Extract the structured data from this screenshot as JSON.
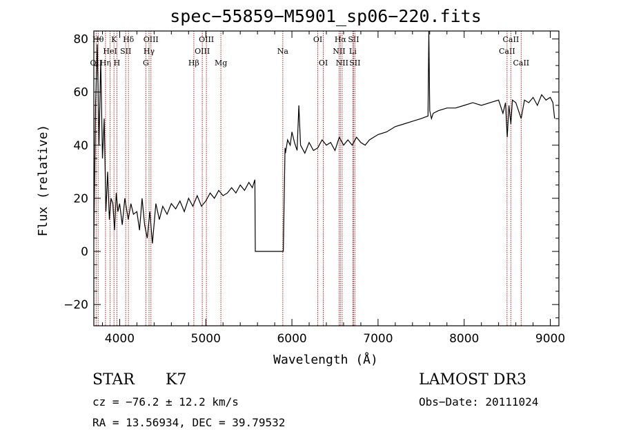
{
  "chart_data": {
    "type": "line",
    "title": "spec−55859−M5901_sp06−220.fits",
    "xlabel": "Wavelength (Å)",
    "ylabel": "Flux (relative)",
    "xlim": [
      3700,
      9100
    ],
    "ylim": [
      -28,
      83
    ],
    "xticks": [
      4000,
      5000,
      6000,
      7000,
      8000,
      9000
    ],
    "xtick_labels": [
      "4000",
      "5000",
      "6000",
      "7000",
      "8000",
      "9000"
    ],
    "yticks": [
      -20,
      0,
      20,
      40,
      60,
      80
    ],
    "ytick_labels": [
      "−20",
      "0",
      "20",
      "40",
      "60",
      "80"
    ],
    "series": [
      {
        "name": "flux",
        "x": [
          3700,
          3720,
          3740,
          3760,
          3780,
          3800,
          3820,
          3840,
          3860,
          3880,
          3900,
          3920,
          3940,
          3960,
          3980,
          4000,
          4030,
          4060,
          4100,
          4130,
          4160,
          4200,
          4230,
          4260,
          4290,
          4320,
          4350,
          4380,
          4420,
          4460,
          4500,
          4550,
          4600,
          4650,
          4700,
          4750,
          4800,
          4850,
          4900,
          4950,
          5000,
          5050,
          5100,
          5150,
          5200,
          5250,
          5300,
          5350,
          5400,
          5450,
          5500,
          5540,
          5570,
          5575,
          5600,
          5700,
          5800,
          5900,
          5920,
          5925,
          5950,
          5980,
          6000,
          6030,
          6060,
          6080,
          6100,
          6150,
          6200,
          6250,
          6300,
          6350,
          6400,
          6450,
          6500,
          6550,
          6600,
          6650,
          6700,
          6750,
          6800,
          6850,
          6900,
          6950,
          7000,
          7100,
          7200,
          7300,
          7400,
          7500,
          7580,
          7590,
          7600,
          7620,
          7640,
          7700,
          7800,
          7900,
          8000,
          8100,
          8200,
          8300,
          8400,
          8450,
          8480,
          8500,
          8520,
          8542,
          8560,
          8600,
          8662,
          8700,
          8750,
          8800,
          8850,
          8900,
          8950,
          9000,
          9030,
          9050
        ],
        "values": [
          5,
          55,
          78,
          40,
          72,
          35,
          50,
          15,
          30,
          12,
          20,
          18,
          8,
          22,
          15,
          18,
          10,
          20,
          12,
          18,
          14,
          15,
          8,
          20,
          10,
          5,
          15,
          3,
          18,
          12,
          17,
          14,
          18,
          16,
          19,
          15,
          20,
          17,
          21,
          17,
          19,
          22,
          20,
          23,
          21,
          22,
          24,
          22,
          25,
          23,
          26,
          24,
          27,
          0,
          0,
          0,
          0,
          0,
          39,
          37,
          42,
          40,
          45,
          41,
          38,
          55,
          40,
          37,
          41,
          38,
          39,
          42,
          40,
          41,
          38,
          43,
          40,
          42,
          40,
          43,
          41,
          40,
          42,
          43,
          44,
          45,
          47,
          48,
          49,
          50,
          51,
          83,
          53,
          50,
          52,
          53,
          54,
          54,
          55,
          56,
          55,
          56,
          57,
          52,
          56,
          43,
          55,
          48,
          57,
          56,
          50,
          57,
          56,
          58,
          55,
          59,
          57,
          58,
          56,
          50
        ]
      }
    ],
    "line_markers": [
      {
        "name": "OII",
        "wavelength": 3727,
        "row": 2
      },
      {
        "name": "Hθ",
        "wavelength": 3750,
        "row": 0
      },
      {
        "name": "Hη",
        "wavelength": 3835,
        "row": 2
      },
      {
        "name": "HeI",
        "wavelength": 3889,
        "row": 1
      },
      {
        "name": "K",
        "wavelength": 3934,
        "row": 0
      },
      {
        "name": "H",
        "wavelength": 3968,
        "row": 2
      },
      {
        "name": "SII",
        "wavelength": 4070,
        "row": 1
      },
      {
        "name": "Hδ",
        "wavelength": 4102,
        "row": 0
      },
      {
        "name": "G",
        "wavelength": 4304,
        "row": 2
      },
      {
        "name": "Hγ",
        "wavelength": 4341,
        "row": 1
      },
      {
        "name": "OIII",
        "wavelength": 4363,
        "row": 0
      },
      {
        "name": "Hβ",
        "wavelength": 4861,
        "row": 2
      },
      {
        "name": "OIII",
        "wavelength": 4959,
        "row": 1
      },
      {
        "name": "OIII",
        "wavelength": 5007,
        "row": 0
      },
      {
        "name": "Mg",
        "wavelength": 5175,
        "row": 2
      },
      {
        "name": "Na",
        "wavelength": 5894,
        "row": 1
      },
      {
        "name": "OI",
        "wavelength": 6300,
        "row": 0
      },
      {
        "name": "OI",
        "wavelength": 6364,
        "row": 2
      },
      {
        "name": "NII",
        "wavelength": 6548,
        "row": 1
      },
      {
        "name": "Hα",
        "wavelength": 6563,
        "row": 0
      },
      {
        "name": "NII",
        "wavelength": 6583,
        "row": 2
      },
      {
        "name": "Li",
        "wavelength": 6707,
        "row": 1
      },
      {
        "name": "SII",
        "wavelength": 6716,
        "row": 0
      },
      {
        "name": "SII",
        "wavelength": 6731,
        "row": 2
      },
      {
        "name": "CaII",
        "wavelength": 8498,
        "row": 1
      },
      {
        "name": "CaII",
        "wavelength": 8542,
        "row": 0
      },
      {
        "name": "CaII",
        "wavelength": 8662,
        "row": 2
      }
    ]
  },
  "info": {
    "object_class": "STAR",
    "subclass": "K7",
    "survey": "LAMOST DR3",
    "cz": "cz = −76.2 ± 12.2 km/s",
    "obs_date": "Obs−Date: 20111024",
    "radec": "RA =  13.56934, DEC =  39.79532"
  },
  "colors": {
    "axis": "#000000",
    "spectrum": "#000000",
    "marker_line": "#b22222"
  }
}
